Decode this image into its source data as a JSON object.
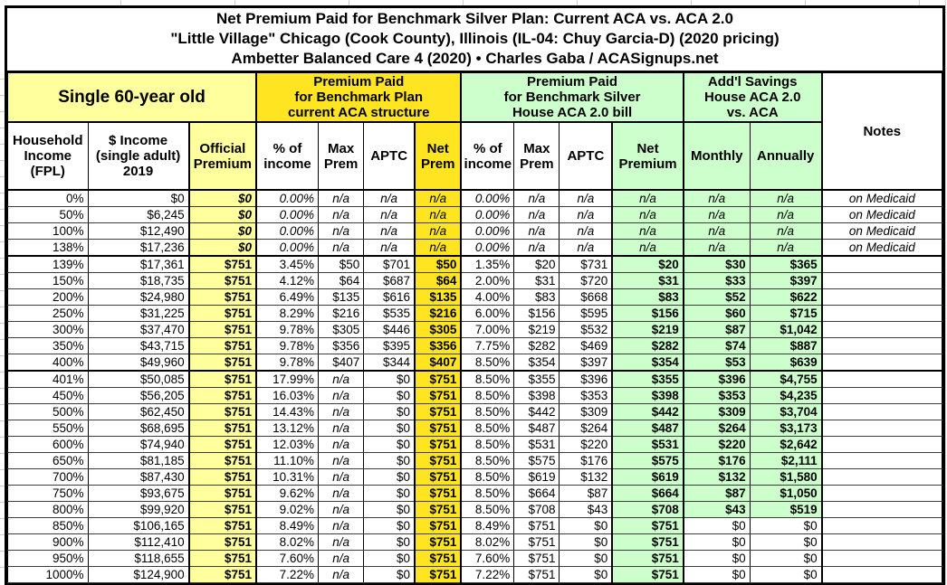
{
  "title": {
    "line1": "Net Premium Paid for Benchmark Silver Plan: Current ACA vs. ACA 2.0",
    "line2": "\"Little Village\" Chicago (Cook County), Illinois (IL-04: Chuy Garcia-D) (2020 pricing)",
    "line3": "Ambetter Balanced Care 4 (2020) • Charles Gaba / ACASignups.net"
  },
  "groups": {
    "demographic": "Single 60-year old",
    "current_aca": "Premium Paid\nfor Benchmark Plan\ncurrent ACA structure",
    "aca20": "Premium Paid\nfor Benchmark Silver\nHouse ACA 2.0 bill",
    "savings": "Add'l Savings\nHouse ACA 2.0\nvs. ACA",
    "notes": "Notes"
  },
  "columns": {
    "fpl": "Household\nIncome\n(FPL)",
    "income": "$ Income\n(single adult)\n2019",
    "official": "Official\nPremium",
    "pct_income": "% of\nincome",
    "max_prem": "Max\nPrem",
    "aptc": "APTC",
    "net_prem": "Net\nPrem",
    "net_premium": "Net\nPremium",
    "monthly": "Monthly",
    "annually": "Annually"
  },
  "colors": {
    "light_yellow": "#FFFF9E",
    "bright_yellow": "#FFE521",
    "light_green": "#CCFFCC"
  },
  "rows": [
    {
      "fpl": "0%",
      "income": "$0",
      "official": "$0",
      "a_pct": "0.00%",
      "a_max": "n/a",
      "a_aptc": "n/a",
      "a_net": "n/a",
      "h_pct": "0.00%",
      "h_max": "n/a",
      "h_aptc": "n/a",
      "h_net": "n/a",
      "mo": "n/a",
      "yr": "n/a",
      "note": "on Medicaid"
    },
    {
      "fpl": "50%",
      "income": "$6,245",
      "official": "$0",
      "a_pct": "0.00%",
      "a_max": "n/a",
      "a_aptc": "n/a",
      "a_net": "n/a",
      "h_pct": "0.00%",
      "h_max": "n/a",
      "h_aptc": "n/a",
      "h_net": "n/a",
      "mo": "n/a",
      "yr": "n/a",
      "note": "on Medicaid"
    },
    {
      "fpl": "100%",
      "income": "$12,490",
      "official": "$0",
      "a_pct": "0.00%",
      "a_max": "n/a",
      "a_aptc": "n/a",
      "a_net": "n/a",
      "h_pct": "0.00%",
      "h_max": "n/a",
      "h_aptc": "n/a",
      "h_net": "n/a",
      "mo": "n/a",
      "yr": "n/a",
      "note": "on Medicaid"
    },
    {
      "fpl": "138%",
      "income": "$17,236",
      "official": "$0",
      "a_pct": "0.00%",
      "a_max": "n/a",
      "a_aptc": "n/a",
      "a_net": "n/a",
      "h_pct": "0.00%",
      "h_max": "n/a",
      "h_aptc": "n/a",
      "h_net": "n/a",
      "mo": "n/a",
      "yr": "n/a",
      "note": "on Medicaid"
    },
    {
      "fpl": "139%",
      "income": "$17,361",
      "official": "$751",
      "a_pct": "3.45%",
      "a_max": "$50",
      "a_aptc": "$701",
      "a_net": "$50",
      "h_pct": "1.35%",
      "h_max": "$20",
      "h_aptc": "$731",
      "h_net": "$20",
      "mo": "$30",
      "yr": "$365",
      "note": ""
    },
    {
      "fpl": "150%",
      "income": "$18,735",
      "official": "$751",
      "a_pct": "4.12%",
      "a_max": "$64",
      "a_aptc": "$687",
      "a_net": "$64",
      "h_pct": "2.00%",
      "h_max": "$31",
      "h_aptc": "$720",
      "h_net": "$31",
      "mo": "$33",
      "yr": "$397",
      "note": ""
    },
    {
      "fpl": "200%",
      "income": "$24,980",
      "official": "$751",
      "a_pct": "6.49%",
      "a_max": "$135",
      "a_aptc": "$616",
      "a_net": "$135",
      "h_pct": "4.00%",
      "h_max": "$83",
      "h_aptc": "$668",
      "h_net": "$83",
      "mo": "$52",
      "yr": "$622",
      "note": ""
    },
    {
      "fpl": "250%",
      "income": "$31,225",
      "official": "$751",
      "a_pct": "8.29%",
      "a_max": "$216",
      "a_aptc": "$535",
      "a_net": "$216",
      "h_pct": "6.00%",
      "h_max": "$156",
      "h_aptc": "$595",
      "h_net": "$156",
      "mo": "$60",
      "yr": "$715",
      "note": ""
    },
    {
      "fpl": "300%",
      "income": "$37,470",
      "official": "$751",
      "a_pct": "9.78%",
      "a_max": "$305",
      "a_aptc": "$446",
      "a_net": "$305",
      "h_pct": "7.00%",
      "h_max": "$219",
      "h_aptc": "$532",
      "h_net": "$219",
      "mo": "$87",
      "yr": "$1,042",
      "note": ""
    },
    {
      "fpl": "350%",
      "income": "$43,715",
      "official": "$751",
      "a_pct": "9.78%",
      "a_max": "$356",
      "a_aptc": "$395",
      "a_net": "$356",
      "h_pct": "7.75%",
      "h_max": "$282",
      "h_aptc": "$469",
      "h_net": "$282",
      "mo": "$74",
      "yr": "$887",
      "note": ""
    },
    {
      "fpl": "400%",
      "income": "$49,960",
      "official": "$751",
      "a_pct": "9.78%",
      "a_max": "$407",
      "a_aptc": "$344",
      "a_net": "$407",
      "h_pct": "8.50%",
      "h_max": "$354",
      "h_aptc": "$397",
      "h_net": "$354",
      "mo": "$53",
      "yr": "$639",
      "note": ""
    },
    {
      "fpl": "401%",
      "income": "$50,085",
      "official": "$751",
      "a_pct": "17.99%",
      "a_max": "n/a",
      "a_aptc": "$0",
      "a_net": "$751",
      "h_pct": "8.50%",
      "h_max": "$355",
      "h_aptc": "$396",
      "h_net": "$355",
      "mo": "$396",
      "yr": "$4,755",
      "note": ""
    },
    {
      "fpl": "450%",
      "income": "$56,205",
      "official": "$751",
      "a_pct": "16.03%",
      "a_max": "n/a",
      "a_aptc": "$0",
      "a_net": "$751",
      "h_pct": "8.50%",
      "h_max": "$398",
      "h_aptc": "$353",
      "h_net": "$398",
      "mo": "$353",
      "yr": "$4,235",
      "note": ""
    },
    {
      "fpl": "500%",
      "income": "$62,450",
      "official": "$751",
      "a_pct": "14.43%",
      "a_max": "n/a",
      "a_aptc": "$0",
      "a_net": "$751",
      "h_pct": "8.50%",
      "h_max": "$442",
      "h_aptc": "$309",
      "h_net": "$442",
      "mo": "$309",
      "yr": "$3,704",
      "note": ""
    },
    {
      "fpl": "550%",
      "income": "$68,695",
      "official": "$751",
      "a_pct": "13.12%",
      "a_max": "n/a",
      "a_aptc": "$0",
      "a_net": "$751",
      "h_pct": "8.50%",
      "h_max": "$487",
      "h_aptc": "$264",
      "h_net": "$487",
      "mo": "$264",
      "yr": "$3,173",
      "note": ""
    },
    {
      "fpl": "600%",
      "income": "$74,940",
      "official": "$751",
      "a_pct": "12.03%",
      "a_max": "n/a",
      "a_aptc": "$0",
      "a_net": "$751",
      "h_pct": "8.50%",
      "h_max": "$531",
      "h_aptc": "$220",
      "h_net": "$531",
      "mo": "$220",
      "yr": "$2,642",
      "note": ""
    },
    {
      "fpl": "650%",
      "income": "$81,185",
      "official": "$751",
      "a_pct": "11.10%",
      "a_max": "n/a",
      "a_aptc": "$0",
      "a_net": "$751",
      "h_pct": "8.50%",
      "h_max": "$575",
      "h_aptc": "$176",
      "h_net": "$575",
      "mo": "$176",
      "yr": "$2,111",
      "note": ""
    },
    {
      "fpl": "700%",
      "income": "$87,430",
      "official": "$751",
      "a_pct": "10.31%",
      "a_max": "n/a",
      "a_aptc": "$0",
      "a_net": "$751",
      "h_pct": "8.50%",
      "h_max": "$619",
      "h_aptc": "$132",
      "h_net": "$619",
      "mo": "$132",
      "yr": "$1,580",
      "note": ""
    },
    {
      "fpl": "750%",
      "income": "$93,675",
      "official": "$751",
      "a_pct": "9.62%",
      "a_max": "n/a",
      "a_aptc": "$0",
      "a_net": "$751",
      "h_pct": "8.50%",
      "h_max": "$664",
      "h_aptc": "$87",
      "h_net": "$664",
      "mo": "$87",
      "yr": "$1,050",
      "note": ""
    },
    {
      "fpl": "800%",
      "income": "$99,920",
      "official": "$751",
      "a_pct": "9.02%",
      "a_max": "n/a",
      "a_aptc": "$0",
      "a_net": "$751",
      "h_pct": "8.50%",
      "h_max": "$708",
      "h_aptc": "$43",
      "h_net": "$708",
      "mo": "$43",
      "yr": "$519",
      "note": ""
    },
    {
      "fpl": "850%",
      "income": "$106,165",
      "official": "$751",
      "a_pct": "8.49%",
      "a_max": "n/a",
      "a_aptc": "$0",
      "a_net": "$751",
      "h_pct": "8.49%",
      "h_max": "$751",
      "h_aptc": "$0",
      "h_net": "$751",
      "mo": "$0",
      "yr": "$0",
      "note": ""
    },
    {
      "fpl": "900%",
      "income": "$112,410",
      "official": "$751",
      "a_pct": "8.02%",
      "a_max": "n/a",
      "a_aptc": "$0",
      "a_net": "$751",
      "h_pct": "8.02%",
      "h_max": "$751",
      "h_aptc": "$0",
      "h_net": "$751",
      "mo": "$0",
      "yr": "$0",
      "note": ""
    },
    {
      "fpl": "950%",
      "income": "$118,655",
      "official": "$751",
      "a_pct": "7.60%",
      "a_max": "n/a",
      "a_aptc": "$0",
      "a_net": "$751",
      "h_pct": "7.60%",
      "h_max": "$751",
      "h_aptc": "$0",
      "h_net": "$751",
      "mo": "$0",
      "yr": "$0",
      "note": ""
    },
    {
      "fpl": "1000%",
      "income": "$124,900",
      "official": "$751",
      "a_pct": "7.22%",
      "a_max": "n/a",
      "a_aptc": "$0",
      "a_net": "$751",
      "h_pct": "7.22%",
      "h_max": "$751",
      "h_aptc": "$0",
      "h_net": "$751",
      "mo": "$0",
      "yr": "$0",
      "note": ""
    }
  ]
}
